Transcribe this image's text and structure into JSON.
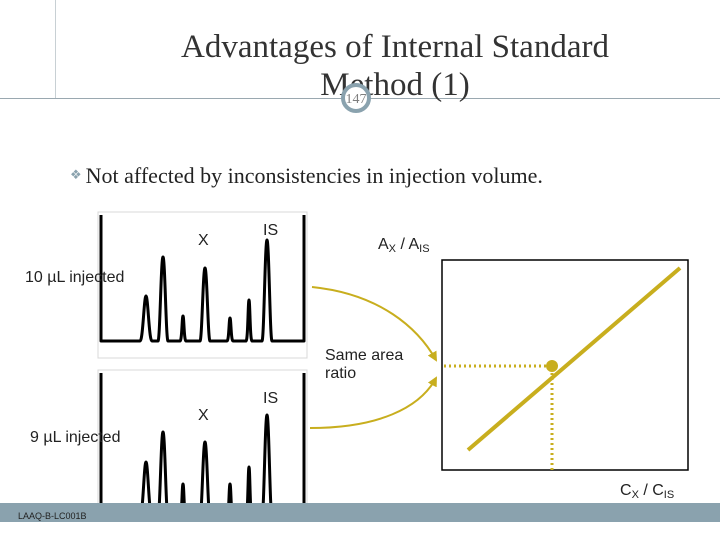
{
  "slide": {
    "title": "Advantages of Internal Standard Method (1)",
    "page_number": "147"
  },
  "bullet": {
    "text": "Not affected by inconsistencies in injection volume."
  },
  "chromatogram_top": {
    "injection_label": "10 µL injected",
    "peak_x": "X",
    "peak_is": "IS"
  },
  "chromatogram_bottom": {
    "injection_label": "9 µL injected",
    "peak_x": "X",
    "peak_is": "IS"
  },
  "calibration": {
    "y_label_main": "A",
    "y_label_sub_x": "X",
    "y_label_sep": " / A",
    "y_label_sub_is": "IS",
    "x_label_main": "C",
    "x_label_sub_x": "X",
    "x_label_sep": " / C",
    "x_label_sub_is": "IS"
  },
  "annotation": {
    "same_area_ratio": "Same area ratio"
  },
  "footer": {
    "code": "LAAQ-B-LC001B"
  },
  "colors": {
    "accent": "#c8ae1e",
    "frame": "#8aa2ae",
    "ink": "#000000"
  }
}
